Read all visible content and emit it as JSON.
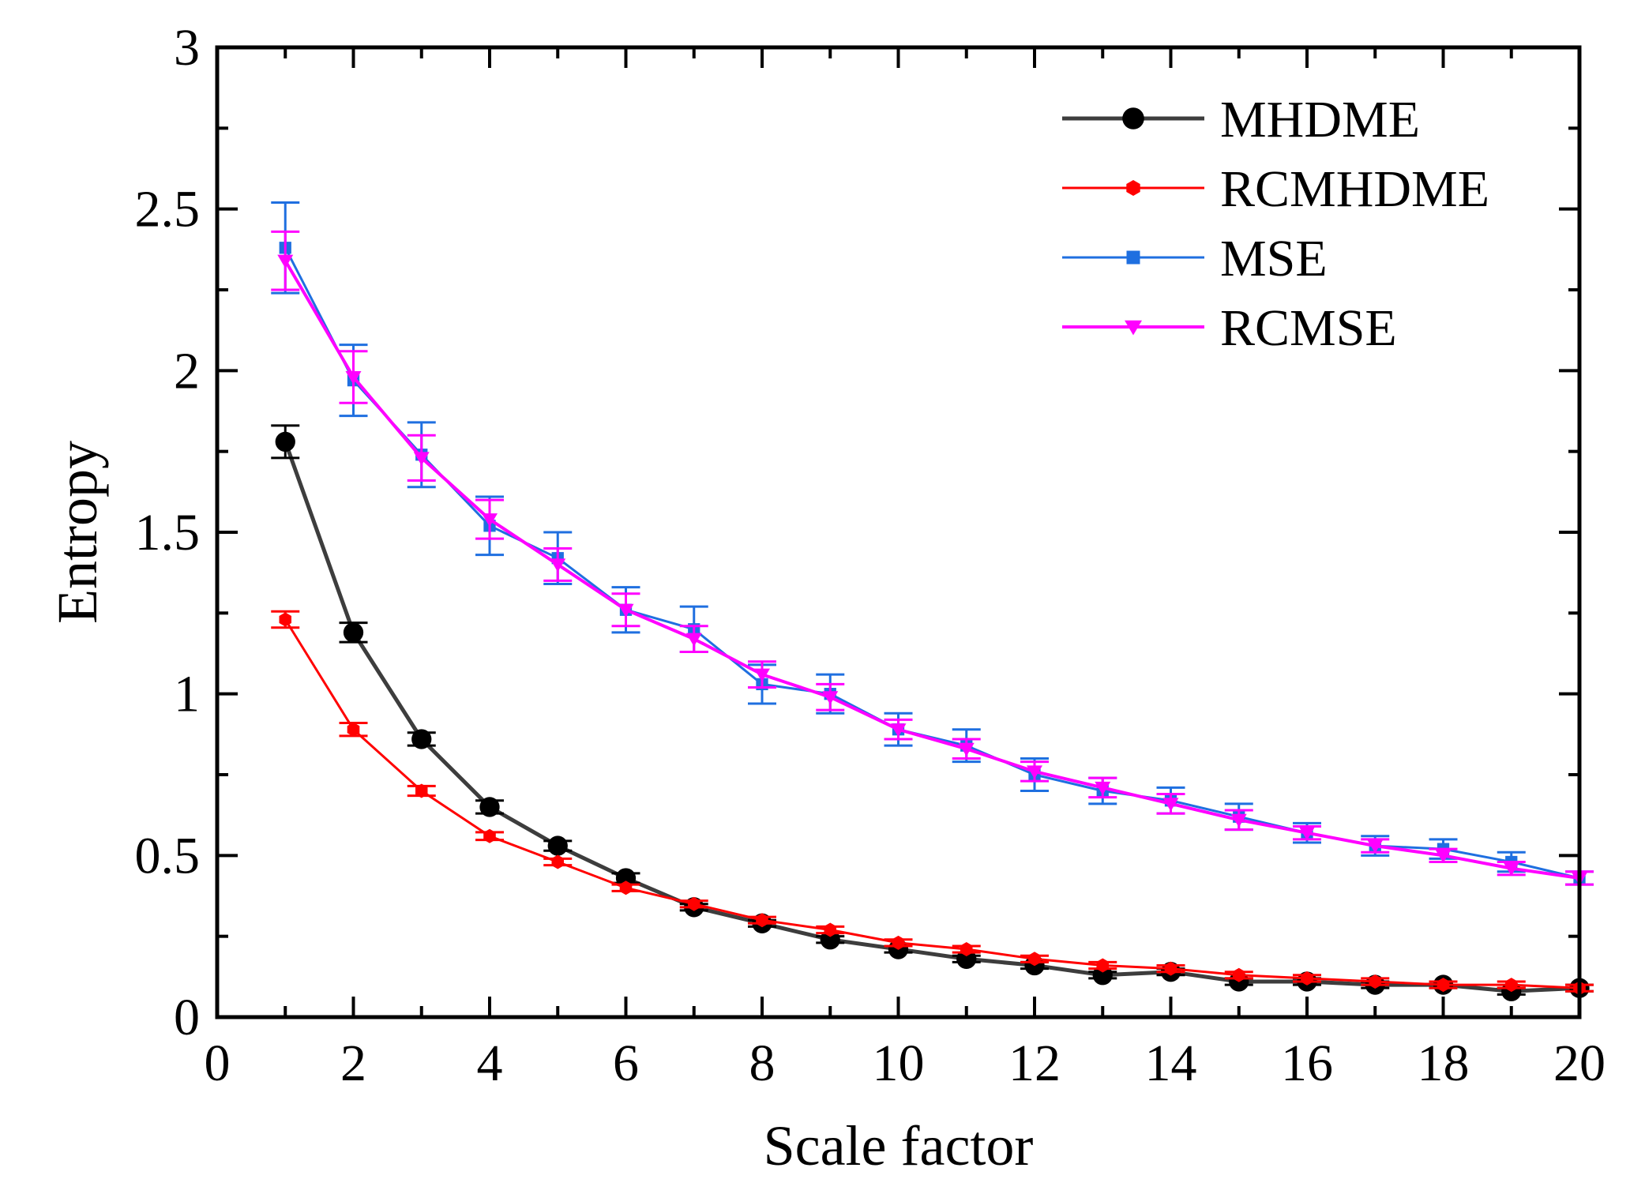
{
  "chart_data": {
    "type": "line",
    "title": "",
    "xlabel": "Scale factor",
    "ylabel": "Entropy",
    "xlim": [
      0,
      20
    ],
    "ylim": [
      0,
      3
    ],
    "xticks": [
      0,
      2,
      4,
      6,
      8,
      10,
      12,
      14,
      16,
      18,
      20
    ],
    "yticks": [
      0,
      0.5,
      1,
      1.5,
      2,
      2.5,
      3
    ],
    "xtick_labels": [
      "0",
      "2",
      "4",
      "6",
      "8",
      "10",
      "12",
      "14",
      "16",
      "18",
      "20"
    ],
    "ytick_labels": [
      "0",
      "0.5",
      "1",
      "1.5",
      "2",
      "2.5",
      "3"
    ],
    "grid": false,
    "legend_position": "top-right",
    "x": [
      1,
      2,
      3,
      4,
      5,
      6,
      7,
      8,
      9,
      10,
      11,
      12,
      13,
      14,
      15,
      16,
      17,
      18,
      19,
      20
    ],
    "series": [
      {
        "name": "MHDME",
        "color": "#3d3d3d",
        "marker": "circle",
        "values": [
          1.78,
          1.19,
          0.86,
          0.65,
          0.53,
          0.43,
          0.34,
          0.29,
          0.24,
          0.21,
          0.18,
          0.16,
          0.13,
          0.14,
          0.11,
          0.11,
          0.1,
          0.1,
          0.08,
          0.09
        ],
        "errors": [
          0.05,
          0.03,
          0.02,
          0.02,
          0.015,
          0.015,
          0.01,
          0.01,
          0.01,
          0.01,
          0.01,
          0.01,
          0.01,
          0.01,
          0.01,
          0.01,
          0.01,
          0.01,
          0.01,
          0.01
        ]
      },
      {
        "name": "RCMHDME",
        "color": "#ff0000",
        "marker": "hexagon",
        "values": [
          1.23,
          0.89,
          0.7,
          0.56,
          0.48,
          0.4,
          0.35,
          0.3,
          0.27,
          0.23,
          0.21,
          0.18,
          0.16,
          0.15,
          0.13,
          0.12,
          0.11,
          0.1,
          0.1,
          0.09
        ],
        "errors": [
          0.025,
          0.02,
          0.015,
          0.012,
          0.01,
          0.01,
          0.01,
          0.01,
          0.01,
          0.01,
          0.01,
          0.01,
          0.01,
          0.01,
          0.01,
          0.01,
          0.01,
          0.01,
          0.01,
          0.01
        ]
      },
      {
        "name": "MSE",
        "color": "#1f6fe0",
        "marker": "square",
        "values": [
          2.38,
          1.97,
          1.74,
          1.52,
          1.42,
          1.26,
          1.2,
          1.03,
          1.0,
          0.89,
          0.84,
          0.75,
          0.7,
          0.67,
          0.62,
          0.57,
          0.53,
          0.52,
          0.48,
          0.43
        ],
        "errors": [
          0.14,
          0.11,
          0.1,
          0.09,
          0.08,
          0.07,
          0.07,
          0.06,
          0.06,
          0.05,
          0.05,
          0.05,
          0.04,
          0.04,
          0.04,
          0.03,
          0.03,
          0.03,
          0.03,
          0.02
        ]
      },
      {
        "name": "RCMSE",
        "color": "#ff00ff",
        "marker": "triangle-down",
        "values": [
          2.34,
          1.98,
          1.73,
          1.54,
          1.4,
          1.26,
          1.17,
          1.06,
          0.99,
          0.89,
          0.83,
          0.76,
          0.71,
          0.66,
          0.61,
          0.57,
          0.53,
          0.5,
          0.46,
          0.43
        ],
        "errors": [
          0.09,
          0.08,
          0.07,
          0.06,
          0.05,
          0.05,
          0.04,
          0.04,
          0.04,
          0.03,
          0.03,
          0.03,
          0.03,
          0.03,
          0.03,
          0.02,
          0.02,
          0.02,
          0.02,
          0.02
        ]
      }
    ]
  }
}
